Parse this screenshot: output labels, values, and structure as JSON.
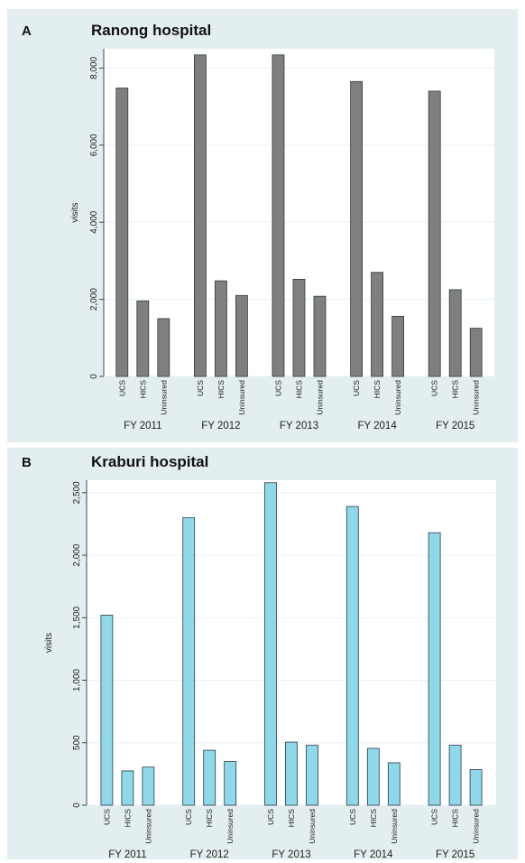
{
  "chart_data": [
    {
      "type": "bar",
      "panel_label": "A",
      "title": "Ranong hospital",
      "ylabel": "visits",
      "ylim": [
        0,
        8500
      ],
      "yticks": [
        0,
        2000,
        4000,
        6000,
        8000
      ],
      "ytick_labels": [
        "0",
        "2,000",
        "4,000",
        "6,000",
        "8,000"
      ],
      "bar_categories": [
        "UCS",
        "HICS",
        "Uninsured"
      ],
      "groups": [
        "FY 2011",
        "FY 2012",
        "FY 2013",
        "FY 2014",
        "FY 2015"
      ],
      "values": [
        [
          7480,
          1960,
          1500
        ],
        [
          8340,
          2480,
          2100
        ],
        [
          8340,
          2520,
          2080
        ],
        [
          7650,
          2700,
          1560
        ],
        [
          7400,
          2250,
          1250
        ]
      ],
      "bar_color": "#7f7f7f",
      "grid": true,
      "legend": "none"
    },
    {
      "type": "bar",
      "panel_label": "B",
      "title": "Kraburi hospital",
      "ylabel": "visits",
      "ylim": [
        0,
        2600
      ],
      "yticks": [
        0,
        500,
        1000,
        1500,
        2000,
        2500
      ],
      "ytick_labels": [
        "0",
        "500",
        "1,000",
        "1,500",
        "2,000",
        "2,500"
      ],
      "bar_categories": [
        "UCS",
        "HICS",
        "Uninsured"
      ],
      "groups": [
        "FY 2011",
        "FY 2012",
        "FY 2013",
        "FY 2014",
        "FY 2015"
      ],
      "values": [
        [
          1520,
          275,
          305
        ],
        [
          2300,
          440,
          350
        ],
        [
          2580,
          505,
          480
        ],
        [
          2390,
          455,
          340
        ],
        [
          2180,
          480,
          285
        ]
      ],
      "bar_color": "#8fd8ea",
      "grid": true,
      "legend": "none"
    }
  ]
}
